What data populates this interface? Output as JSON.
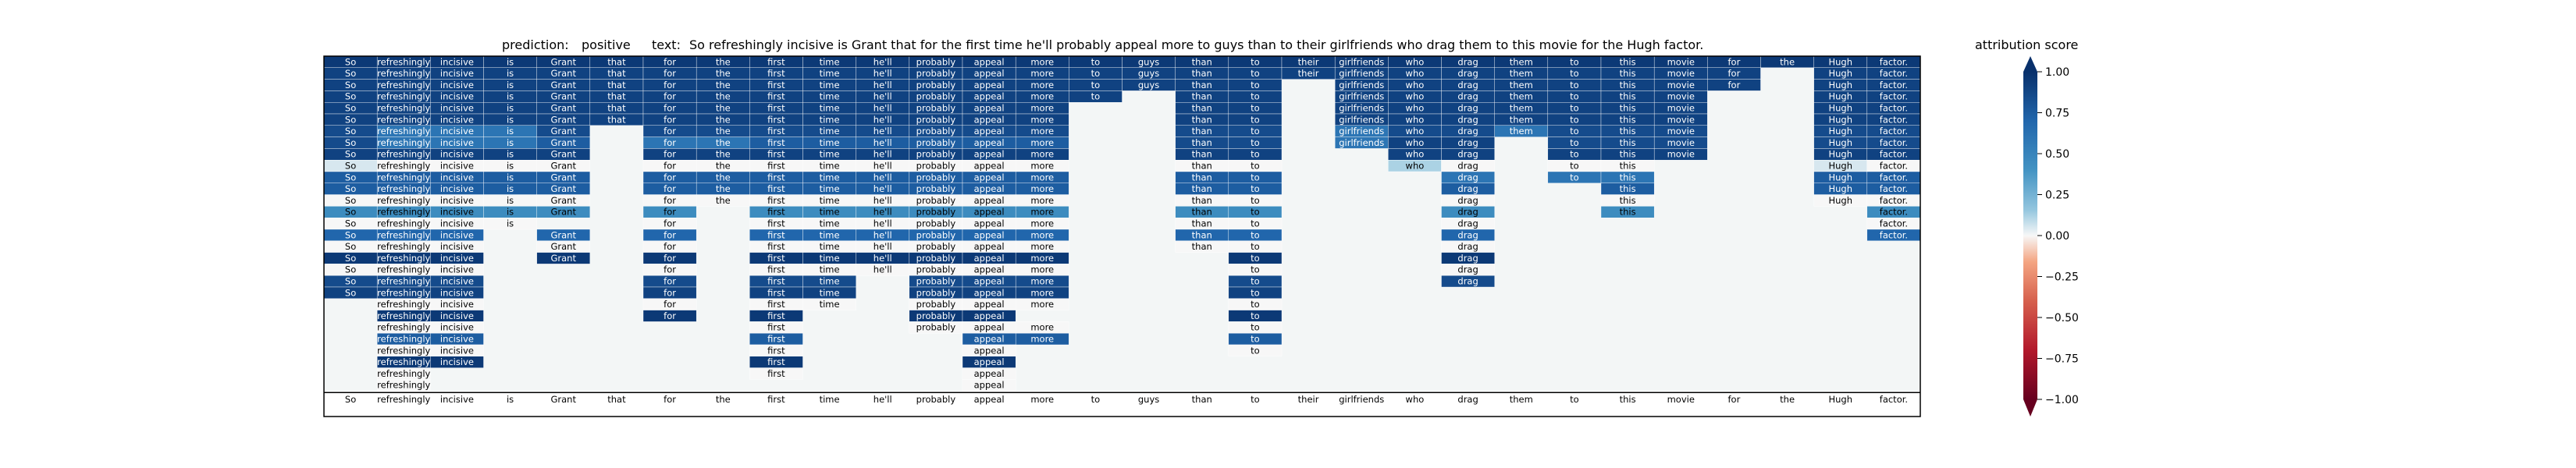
{
  "header": {
    "prediction_label": "prediction:",
    "prediction_value": "positive",
    "text_label": "text:",
    "text_value": "So refreshingly incisive is Grant that for the first time he'll probably appeal more to guys than to their girlfriends who drag them to this movie for the Hugh factor."
  },
  "colorbar": {
    "title": "attribution score",
    "ticks": [
      "1.00",
      "0.75",
      "0.50",
      "0.25",
      "0.00",
      "−0.25",
      "−0.50",
      "−0.75",
      "−1.00"
    ],
    "tick_values": [
      1.0,
      0.75,
      0.5,
      0.25,
      0.0,
      -0.25,
      -0.5,
      -0.75,
      -1.0
    ]
  },
  "colors": {
    "positive_strong": "#08306b",
    "positive_mid": "#2166ac",
    "positive_light": "#92c5de",
    "neutral": "#f7f7f7",
    "negative_light": "#f4a582",
    "negative_strong": "#67001f",
    "grid_line": "#9ab",
    "background_cell": "#f3f6f6"
  },
  "chart_data": {
    "type": "heatmap",
    "title": "",
    "tokens": [
      "So",
      "refreshingly",
      "incisive",
      "is",
      "Grant",
      "that",
      "for",
      "the",
      "first",
      "time",
      "he'll",
      "probably",
      "appeal",
      "more",
      "to",
      "guys",
      "than",
      "to",
      "their",
      "girlfriends",
      "who",
      "drag",
      "them",
      "to",
      "this",
      "movie",
      "for",
      "the",
      "Hugh",
      "factor."
    ],
    "bottom_row_tokens": [
      "So",
      "refreshingly",
      "incisive",
      "is",
      "Grant",
      "that",
      "for",
      "the",
      "first",
      "time",
      "he'll",
      "probably",
      "appeal",
      "more",
      "to",
      "guys",
      "than",
      "to",
      "their",
      "girlfriends",
      "who",
      "drag",
      "them",
      "to",
      "this",
      "movie",
      "for",
      "the",
      "Hugh",
      "factor."
    ],
    "value_range": [
      -1.0,
      1.0
    ],
    "rows": [
      [
        0.95,
        0.95,
        0.95,
        0.95,
        0.95,
        0.95,
        0.95,
        0.95,
        0.95,
        0.95,
        0.95,
        0.95,
        0.95,
        0.95,
        0.95,
        0.95,
        0.95,
        0.95,
        0.95,
        0.95,
        0.95,
        0.95,
        0.95,
        0.95,
        0.95,
        0.95,
        0.95,
        0.95,
        0.95,
        0.95
      ],
      [
        0.9,
        0.9,
        0.9,
        0.9,
        0.9,
        0.9,
        0.9,
        0.9,
        0.9,
        0.9,
        0.9,
        0.9,
        0.9,
        0.9,
        0.9,
        0.9,
        0.9,
        0.9,
        0.9,
        0.9,
        0.9,
        0.9,
        0.9,
        0.9,
        0.9,
        0.9,
        0.9,
        null,
        0.9,
        0.9
      ],
      [
        0.9,
        0.9,
        0.9,
        0.9,
        0.9,
        0.9,
        0.9,
        0.9,
        0.9,
        0.9,
        0.9,
        0.9,
        0.9,
        0.9,
        0.9,
        0.9,
        0.9,
        0.9,
        null,
        0.9,
        0.9,
        0.9,
        0.9,
        0.9,
        0.9,
        0.9,
        0.9,
        null,
        0.9,
        0.9
      ],
      [
        0.9,
        0.9,
        0.9,
        0.9,
        0.9,
        0.9,
        0.9,
        0.9,
        0.9,
        0.9,
        0.9,
        0.9,
        0.9,
        0.9,
        0.9,
        null,
        0.9,
        0.9,
        null,
        0.9,
        0.9,
        0.9,
        0.9,
        0.9,
        0.9,
        0.9,
        null,
        null,
        0.9,
        0.9
      ],
      [
        0.9,
        0.9,
        0.9,
        0.9,
        0.9,
        0.9,
        0.9,
        0.9,
        0.9,
        0.9,
        0.9,
        0.9,
        0.9,
        0.9,
        null,
        null,
        0.9,
        0.9,
        null,
        0.9,
        0.9,
        0.9,
        0.9,
        0.9,
        0.9,
        0.9,
        null,
        null,
        0.9,
        0.9
      ],
      [
        0.9,
        0.9,
        0.9,
        0.9,
        0.9,
        0.9,
        0.9,
        0.9,
        0.9,
        0.9,
        0.9,
        0.9,
        0.9,
        0.9,
        null,
        null,
        0.9,
        0.9,
        null,
        0.9,
        0.9,
        0.9,
        0.9,
        0.9,
        0.9,
        0.9,
        null,
        null,
        0.9,
        0.9
      ],
      [
        0.85,
        0.6,
        0.6,
        0.6,
        0.85,
        null,
        0.85,
        0.85,
        0.85,
        0.85,
        0.85,
        0.85,
        0.85,
        0.85,
        null,
        null,
        0.85,
        0.85,
        null,
        0.6,
        0.85,
        0.85,
        0.6,
        0.85,
        0.85,
        0.85,
        null,
        null,
        0.85,
        0.85
      ],
      [
        0.85,
        0.6,
        0.6,
        0.6,
        0.75,
        null,
        0.6,
        0.6,
        0.75,
        0.75,
        0.75,
        0.75,
        0.75,
        0.75,
        null,
        null,
        0.85,
        0.85,
        null,
        0.6,
        0.9,
        0.9,
        null,
        0.85,
        0.85,
        0.85,
        null,
        null,
        0.85,
        0.85
      ],
      [
        0.9,
        0.9,
        0.9,
        0.9,
        0.9,
        null,
        0.9,
        0.9,
        0.9,
        0.9,
        0.9,
        0.9,
        0.9,
        0.9,
        null,
        null,
        0.9,
        0.9,
        null,
        null,
        0.9,
        0.9,
        null,
        0.9,
        0.9,
        0.9,
        null,
        null,
        0.9,
        0.9
      ],
      [
        0.05,
        0.0,
        0.0,
        0.0,
        0.0,
        null,
        0.0,
        0.0,
        0.0,
        0.0,
        0.0,
        0.0,
        0.0,
        0.0,
        null,
        null,
        0.0,
        0.0,
        null,
        null,
        0.12,
        0.0,
        null,
        0.0,
        0.0,
        null,
        null,
        null,
        0.05,
        0.0
      ],
      [
        0.75,
        0.75,
        0.75,
        0.75,
        0.75,
        null,
        0.75,
        0.75,
        0.75,
        0.75,
        0.75,
        0.75,
        0.75,
        0.75,
        null,
        null,
        0.75,
        0.75,
        null,
        null,
        null,
        0.6,
        null,
        0.6,
        0.6,
        null,
        null,
        null,
        0.75,
        0.75
      ],
      [
        0.75,
        0.75,
        0.75,
        0.75,
        0.75,
        null,
        0.75,
        0.75,
        0.75,
        0.75,
        0.75,
        0.75,
        0.75,
        0.75,
        null,
        null,
        0.75,
        0.75,
        null,
        null,
        null,
        0.75,
        null,
        null,
        0.75,
        null,
        null,
        null,
        0.75,
        0.75
      ],
      [
        0.0,
        0.0,
        0.0,
        0.0,
        0.0,
        null,
        0.0,
        0.0,
        0.0,
        0.0,
        0.0,
        0.0,
        0.0,
        0.0,
        null,
        null,
        0.0,
        0.0,
        null,
        null,
        null,
        0.0,
        null,
        null,
        0.0,
        null,
        null,
        null,
        0.0,
        0.0
      ],
      [
        0.45,
        0.45,
        0.45,
        0.45,
        0.45,
        null,
        0.45,
        null,
        0.45,
        0.45,
        0.45,
        0.45,
        0.45,
        0.45,
        null,
        null,
        0.45,
        0.45,
        null,
        null,
        null,
        0.45,
        null,
        null,
        0.45,
        null,
        null,
        null,
        null,
        0.45
      ],
      [
        0.0,
        0.0,
        0.0,
        0.0,
        null,
        null,
        0.0,
        null,
        0.0,
        0.0,
        0.0,
        0.0,
        0.0,
        0.0,
        null,
        null,
        0.0,
        0.0,
        null,
        null,
        null,
        0.0,
        null,
        null,
        null,
        null,
        null,
        null,
        null,
        0.0
      ],
      [
        0.7,
        0.7,
        0.7,
        null,
        0.7,
        null,
        0.7,
        null,
        0.7,
        0.7,
        0.7,
        0.7,
        0.7,
        0.7,
        null,
        null,
        0.7,
        0.7,
        null,
        null,
        null,
        0.7,
        null,
        null,
        null,
        null,
        null,
        null,
        null,
        0.7
      ],
      [
        0.0,
        0.0,
        0.0,
        null,
        0.0,
        null,
        0.0,
        null,
        0.0,
        0.0,
        0.0,
        0.0,
        0.0,
        0.0,
        null,
        null,
        0.0,
        0.0,
        null,
        null,
        null,
        0.0,
        null,
        null,
        null,
        null,
        null,
        null,
        null,
        null
      ],
      [
        0.95,
        0.95,
        0.95,
        null,
        0.95,
        null,
        0.95,
        null,
        0.95,
        0.95,
        0.95,
        0.95,
        0.95,
        0.95,
        null,
        null,
        null,
        0.95,
        null,
        null,
        null,
        0.95,
        null,
        null,
        null,
        null,
        null,
        null,
        null,
        null
      ],
      [
        0.0,
        0.0,
        0.0,
        null,
        null,
        null,
        0.0,
        null,
        0.0,
        0.0,
        0.0,
        0.0,
        0.0,
        0.0,
        null,
        null,
        null,
        0.0,
        null,
        null,
        null,
        0.0,
        null,
        null,
        null,
        null,
        null,
        null,
        null,
        null
      ],
      [
        0.85,
        0.85,
        0.85,
        null,
        null,
        null,
        0.85,
        null,
        0.85,
        0.85,
        null,
        0.85,
        0.85,
        0.85,
        null,
        null,
        null,
        0.85,
        null,
        null,
        null,
        0.85,
        null,
        null,
        null,
        null,
        null,
        null,
        null,
        null
      ],
      [
        0.9,
        0.9,
        0.9,
        null,
        null,
        null,
        0.9,
        null,
        0.9,
        0.9,
        null,
        0.9,
        0.9,
        0.9,
        null,
        null,
        null,
        0.9,
        null,
        null,
        null,
        null,
        null,
        null,
        null,
        null,
        null,
        null,
        null,
        null
      ],
      [
        null,
        0.0,
        0.0,
        null,
        null,
        null,
        0.0,
        null,
        0.0,
        0.0,
        null,
        0.0,
        0.0,
        0.0,
        null,
        null,
        null,
        0.0,
        null,
        null,
        null,
        null,
        null,
        null,
        null,
        null,
        null,
        null,
        null,
        null
      ],
      [
        null,
        0.95,
        0.95,
        null,
        null,
        null,
        0.95,
        null,
        0.95,
        null,
        null,
        0.95,
        0.95,
        null,
        null,
        null,
        null,
        0.95,
        null,
        null,
        null,
        null,
        null,
        null,
        null,
        null,
        null,
        null,
        null,
        null
      ],
      [
        null,
        0.0,
        0.0,
        null,
        null,
        null,
        null,
        null,
        0.0,
        null,
        null,
        0.0,
        0.0,
        0.0,
        null,
        null,
        null,
        0.0,
        null,
        null,
        null,
        null,
        null,
        null,
        null,
        null,
        null,
        null,
        null,
        null
      ],
      [
        null,
        0.75,
        0.75,
        null,
        null,
        null,
        null,
        null,
        0.75,
        null,
        null,
        null,
        0.75,
        0.75,
        null,
        null,
        null,
        0.75,
        null,
        null,
        null,
        null,
        null,
        null,
        null,
        null,
        null,
        null,
        null,
        null
      ],
      [
        null,
        0.0,
        0.0,
        null,
        null,
        null,
        null,
        null,
        0.0,
        null,
        null,
        null,
        0.0,
        null,
        null,
        null,
        null,
        0.0,
        null,
        null,
        null,
        null,
        null,
        null,
        null,
        null,
        null,
        null,
        null,
        null
      ],
      [
        null,
        0.95,
        0.95,
        null,
        null,
        null,
        null,
        null,
        0.95,
        null,
        null,
        null,
        0.95,
        null,
        null,
        null,
        null,
        null,
        null,
        null,
        null,
        null,
        null,
        null,
        null,
        null,
        null,
        null,
        null,
        null
      ],
      [
        null,
        0.0,
        null,
        null,
        null,
        null,
        null,
        null,
        0.0,
        null,
        null,
        null,
        0.0,
        null,
        null,
        null,
        null,
        null,
        null,
        null,
        null,
        null,
        null,
        null,
        null,
        null,
        null,
        null,
        null,
        null
      ],
      [
        null,
        0.0,
        null,
        null,
        null,
        null,
        null,
        null,
        null,
        null,
        null,
        null,
        0.0,
        null,
        null,
        null,
        null,
        null,
        null,
        null,
        null,
        null,
        null,
        null,
        null,
        null,
        null,
        null,
        null,
        null
      ]
    ]
  }
}
